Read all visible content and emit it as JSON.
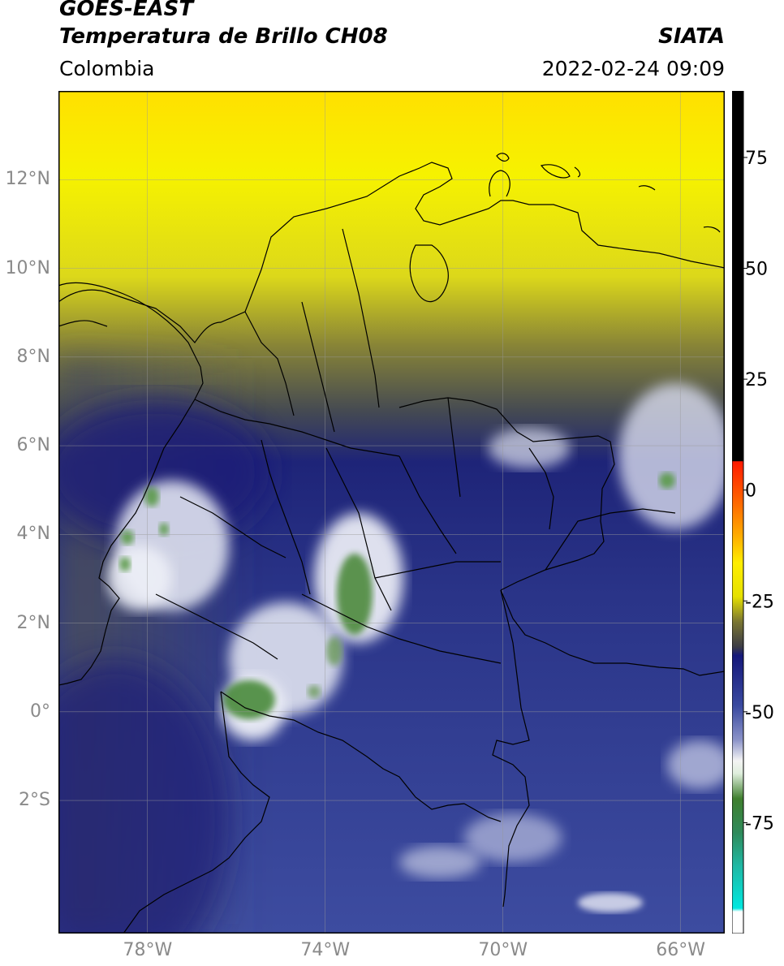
{
  "header": {
    "satellite": "GOES-EAST",
    "product": "Temperatura de Brillo CH08",
    "region": "Colombia",
    "agency": "SIATA",
    "timestamp": "2022-02-24 09:09"
  },
  "map": {
    "lon_range": [
      -80,
      -65
    ],
    "lat_range": [
      -5,
      14
    ],
    "lat_ticks": [
      {
        "value": 12,
        "label": "12°N"
      },
      {
        "value": 10,
        "label": "10°N"
      },
      {
        "value": 8,
        "label": "8°N"
      },
      {
        "value": 6,
        "label": "6°N"
      },
      {
        "value": 4,
        "label": "4°N"
      },
      {
        "value": 2,
        "label": "2°N"
      },
      {
        "value": 0,
        "label": "0°"
      },
      {
        "value": -2,
        "label": "2°S"
      }
    ],
    "lon_ticks": [
      {
        "value": -78,
        "label": "78°W"
      },
      {
        "value": -74,
        "label": "74°W"
      },
      {
        "value": -70,
        "label": "70°W"
      },
      {
        "value": -66,
        "label": "66°W"
      }
    ],
    "colors": {
      "warm_yellow": "#f4f000",
      "olive": "#6e6a2a",
      "navy": "#1a1f7a",
      "blue": "#3a4a9e",
      "cloud_white": "#f0f0f8",
      "cold_green": "#4a8a3a",
      "border": "#000000"
    }
  },
  "colorbar": {
    "range": [
      -100,
      90
    ],
    "ticks": [
      {
        "value": 75,
        "label": "75"
      },
      {
        "value": 50,
        "label": "50"
      },
      {
        "value": 25,
        "label": "25"
      },
      {
        "value": 0,
        "label": "0"
      },
      {
        "value": -25,
        "label": "-25"
      },
      {
        "value": -50,
        "label": "-50"
      },
      {
        "value": -75,
        "label": "-75"
      }
    ]
  }
}
